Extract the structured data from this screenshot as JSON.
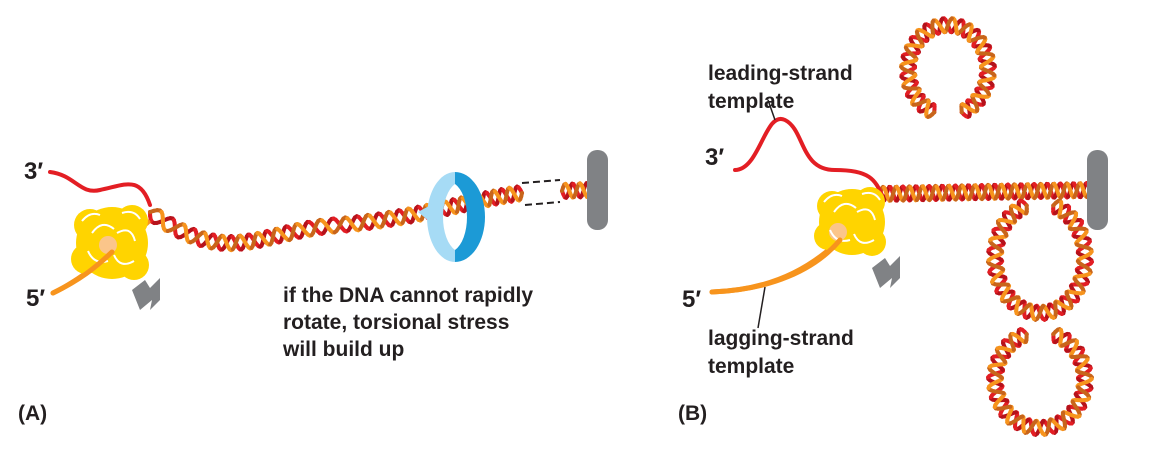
{
  "panel_a": {
    "label": "(A)",
    "three_prime": "3′",
    "five_prime": "5′",
    "caption_lines": [
      "if the DNA cannot rapidly",
      "rotate, torsional stress",
      "will build up"
    ]
  },
  "panel_b": {
    "label": "(B)",
    "three_prime": "3′",
    "five_prime": "5′",
    "leading_label": [
      "leading-strand",
      "template"
    ],
    "lagging_label": [
      "lagging-strand",
      "template"
    ]
  },
  "colors": {
    "leading_strand": "#e31e24",
    "lagging_strand": "#f7941d",
    "helix_dark": "#b5121b",
    "helicase": "#ffd400",
    "anchor": "#808285",
    "rotation_arrow": "#1c9ad6",
    "rotation_arrow_light": "#a6dbf5"
  }
}
